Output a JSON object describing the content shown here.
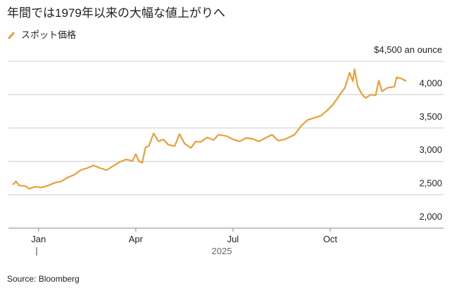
{
  "chart_data": {
    "type": "line",
    "title": "年間では1979年以来の大幅な値上がりへ",
    "xlabel": "2025",
    "source": "Source: Bloomberg",
    "x": [
      -0.8,
      -0.7,
      -0.6,
      -0.4,
      -0.3,
      -0.1,
      0.1,
      0.3,
      0.5,
      0.7,
      0.9,
      1.1,
      1.3,
      1.5,
      1.7,
      1.9,
      2.1,
      2.3,
      2.5,
      2.7,
      2.9,
      3.0,
      3.1,
      3.2,
      3.3,
      3.4,
      3.55,
      3.7,
      3.85,
      4.0,
      4.2,
      4.35,
      4.5,
      4.7,
      4.85,
      5.0,
      5.2,
      5.4,
      5.55,
      5.8,
      6.0,
      6.2,
      6.4,
      6.6,
      6.8,
      7.0,
      7.2,
      7.4,
      7.6,
      7.9,
      8.1,
      8.3,
      8.5,
      8.7,
      8.9,
      9.1,
      9.3,
      9.45,
      9.6,
      9.7,
      9.75,
      9.85,
      10.0,
      10.1,
      10.25,
      10.4,
      10.5,
      10.6,
      10.75,
      10.98,
      11.05,
      11.2,
      11.35
    ],
    "series": [
      {
        "name": "スポット価格",
        "color": "#e8a03a",
        "values": [
          2650,
          2700,
          2640,
          2630,
          2590,
          2620,
          2610,
          2640,
          2680,
          2700,
          2760,
          2800,
          2870,
          2900,
          2940,
          2900,
          2870,
          2930,
          2990,
          3030,
          3010,
          3110,
          3000,
          2980,
          3210,
          3230,
          3420,
          3300,
          3330,
          3250,
          3230,
          3410,
          3270,
          3200,
          3300,
          3290,
          3360,
          3320,
          3400,
          3380,
          3330,
          3300,
          3350,
          3340,
          3300,
          3350,
          3400,
          3310,
          3330,
          3400,
          3530,
          3620,
          3650,
          3680,
          3760,
          3860,
          4000,
          4100,
          4330,
          4200,
          4380,
          4120,
          3990,
          3950,
          4000,
          3990,
          4210,
          4050,
          4100,
          4120,
          4260,
          4240,
          4200
        ]
      }
    ],
    "xlim": [
      -0.93,
      12.5
    ],
    "xticks": [
      {
        "value": 0,
        "label": "Jan"
      },
      {
        "value": 3,
        "label": "Apr"
      },
      {
        "value": 6,
        "label": "Jul"
      },
      {
        "value": 9,
        "label": "Oct"
      }
    ],
    "ylim": [
      2000,
      4500
    ],
    "yticks": [
      2000,
      2500,
      3000,
      3500,
      4000,
      4500
    ],
    "yticklabels": [
      "2,000",
      "2,500",
      "3,000",
      "3,500",
      "4,000",
      "$4,500 an ounce"
    ],
    "grid": true
  }
}
